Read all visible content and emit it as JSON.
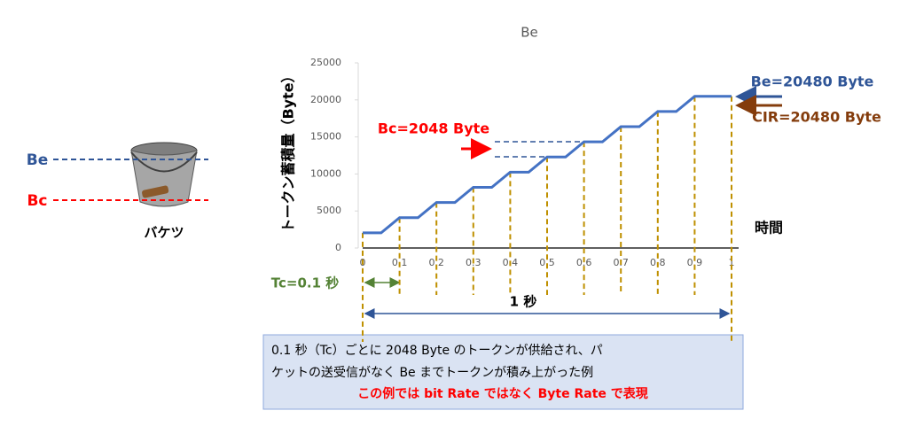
{
  "chart_data": {
    "type": "line",
    "title": "Be",
    "ylabel": "トークン蓄積量（Byte）",
    "xlabel": "時間",
    "x": [
      0,
      0.05,
      0.1,
      0.15,
      0.2,
      0.25,
      0.3,
      0.35,
      0.4,
      0.45,
      0.5,
      0.55,
      0.6,
      0.65,
      0.7,
      0.75,
      0.8,
      0.85,
      0.9,
      1
    ],
    "values": [
      2048,
      2048,
      4096,
      4096,
      6144,
      6144,
      8192,
      8192,
      10240,
      10240,
      12288,
      12288,
      14336,
      14336,
      16384,
      16384,
      18432,
      18432,
      20480,
      20480
    ],
    "color": "#4472c4",
    "xlim": [
      0,
      1
    ],
    "xticks": [
      0,
      0.1,
      0.2,
      0.3,
      0.4,
      0.5,
      0.6,
      0.7,
      0.8,
      0.9,
      1
    ],
    "ylim": [
      0,
      25000
    ],
    "yticks": [
      0,
      5000,
      10000,
      15000,
      20000,
      25000
    ],
    "annotations": {
      "be": "Be=20480 Byte",
      "cir": "CIR=20480 Byte",
      "bc": "Bc=2048 Byte",
      "tc": "Tc=0.1 秒",
      "second": "1 秒",
      "bucket_be": "Be",
      "bucket_bc": "Bc",
      "bucket": "バケツ"
    },
    "note": [
      "0.1 秒（Tc）ごとに 2048 Byte のトークンが供給され、パ",
      "ケットの送受信がなく Be までトークンが積み上がった例",
      "この例では bit Rate ではなく Byte Rate で表現"
    ]
  }
}
